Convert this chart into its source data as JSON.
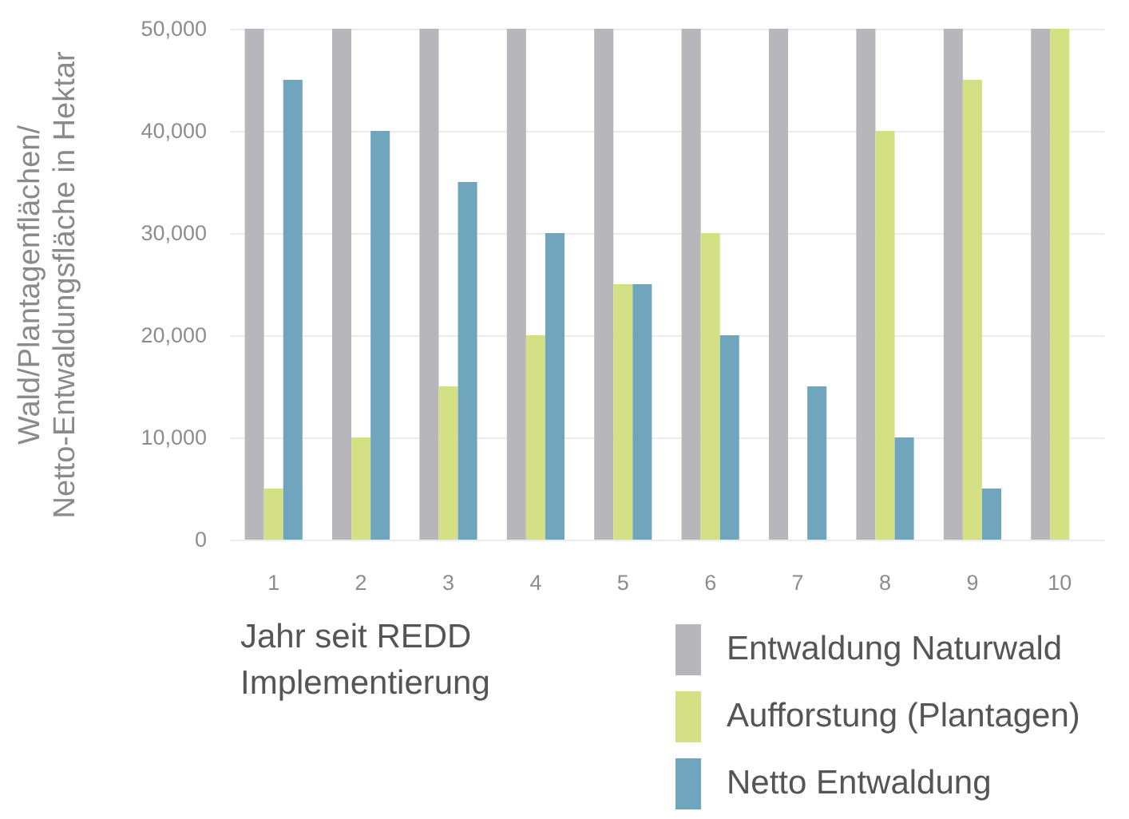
{
  "chart_data": {
    "type": "bar",
    "ylabel": "Wald/Plantagenflächen/\nNetto-Entwaldungsfläche in Hektar",
    "xlabel": "Jahr seit REDD\nImplementierung",
    "categories": [
      "1",
      "2",
      "3",
      "4",
      "5",
      "6",
      "7",
      "8",
      "9",
      "10"
    ],
    "series": [
      {
        "name": "Entwaldung Naturwald",
        "color": "#b7b7bb",
        "values": [
          50000,
          50000,
          50000,
          50000,
          50000,
          50000,
          50000,
          50000,
          50000,
          50000
        ]
      },
      {
        "name": "Aufforstung (Plantagen)",
        "color": "#d3e084",
        "values": [
          5000,
          10000,
          15000,
          20000,
          25000,
          30000,
          null,
          40000,
          45000,
          50000
        ]
      },
      {
        "name": "Netto Entwaldung",
        "color": "#6fa6be",
        "values": [
          45000,
          40000,
          35000,
          30000,
          25000,
          20000,
          15000,
          10000,
          5000,
          null
        ]
      }
    ],
    "ylim": [
      0,
      50000
    ],
    "yticks": [
      0,
      {
        "value": 10000,
        "label": "10,000"
      },
      {
        "value": 20000,
        "label": "20,000"
      },
      {
        "value": 30000,
        "label": "30,000"
      },
      {
        "value": 40000,
        "label": "40,000"
      },
      {
        "value": 50000,
        "label": "50,000"
      }
    ],
    "grid": "y",
    "legend": "bottom right"
  }
}
